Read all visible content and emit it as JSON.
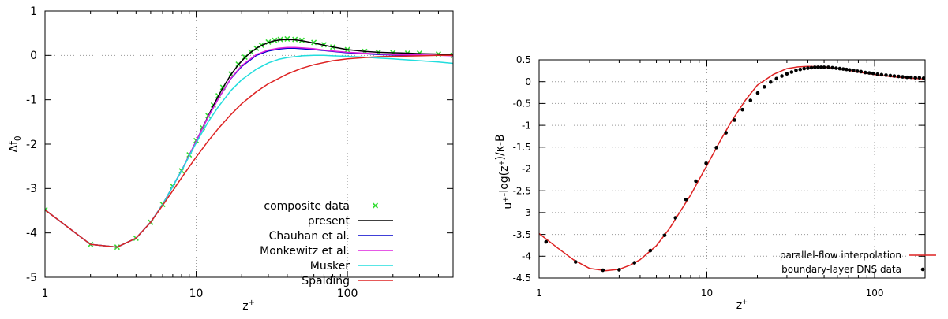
{
  "chart_data": [
    {
      "type": "line",
      "xlabel": "z+",
      "ylabel": "Δf0",
      "xscale": "log",
      "xlim": [
        1,
        500
      ],
      "ylim": [
        -5,
        1
      ],
      "xticks": [
        "1",
        "10",
        "100"
      ],
      "yticks": [
        "1",
        "0",
        "-1",
        "-2",
        "-3",
        "-4",
        "-5"
      ],
      "grid": "dotted at x=10, x=100 and y=0",
      "legend_position": "bottom-right",
      "legend": [
        "composite data",
        "present",
        "Chauhan et al.",
        "Monkewitz et al.",
        "Musker",
        "Spalding"
      ],
      "series": [
        {
          "name": "composite data",
          "style": "markers",
          "color": "#33dd33",
          "x": [
            1,
            2,
            3,
            4,
            5,
            6,
            7,
            8,
            9,
            10,
            11,
            12,
            13,
            14,
            15,
            17,
            19,
            21,
            23,
            25,
            27,
            30,
            33,
            36,
            40,
            45,
            50,
            60,
            70,
            80,
            100,
            130,
            160,
            200,
            250,
            300,
            400,
            500
          ],
          "y": [
            -3.48,
            -4.26,
            -4.32,
            -4.12,
            -3.76,
            -3.36,
            -2.95,
            -2.6,
            -2.24,
            -1.92,
            -1.63,
            -1.36,
            -1.12,
            -0.91,
            -0.72,
            -0.42,
            -0.2,
            -0.04,
            0.08,
            0.16,
            0.23,
            0.3,
            0.34,
            0.36,
            0.37,
            0.36,
            0.34,
            0.29,
            0.24,
            0.19,
            0.13,
            0.09,
            0.07,
            0.06,
            0.05,
            0.05,
            0.03,
            0.0
          ]
        },
        {
          "name": "present",
          "color": "#000000",
          "x": [
            1,
            2,
            3,
            4,
            5,
            6,
            7,
            8,
            9,
            10,
            11,
            12,
            13,
            14,
            15,
            17,
            19,
            21,
            23,
            25,
            27,
            30,
            33,
            36,
            40,
            45,
            50,
            60,
            70,
            80,
            100,
            130,
            160,
            200,
            250,
            300,
            400,
            500
          ],
          "y": [
            -3.48,
            -4.26,
            -4.32,
            -4.12,
            -3.76,
            -3.36,
            -2.95,
            -2.6,
            -2.25,
            -1.93,
            -1.64,
            -1.37,
            -1.13,
            -0.92,
            -0.73,
            -0.43,
            -0.21,
            -0.05,
            0.07,
            0.16,
            0.22,
            0.29,
            0.33,
            0.35,
            0.36,
            0.35,
            0.33,
            0.28,
            0.23,
            0.19,
            0.13,
            0.09,
            0.07,
            0.06,
            0.05,
            0.04,
            0.03,
            0.02
          ]
        },
        {
          "name": "Chauhan et al.",
          "color": "#0000cc",
          "x": [
            1,
            2,
            3,
            4,
            5,
            6,
            7,
            8,
            9,
            10,
            12,
            14,
            17,
            20,
            25,
            30,
            35,
            40,
            45,
            50,
            60,
            70,
            80,
            100,
            130,
            160,
            200,
            300,
            400,
            500
          ],
          "y": [
            -3.48,
            -4.26,
            -4.32,
            -4.12,
            -3.76,
            -3.36,
            -2.95,
            -2.6,
            -2.25,
            -1.93,
            -1.39,
            -0.98,
            -0.52,
            -0.25,
            0.0,
            0.1,
            0.14,
            0.16,
            0.16,
            0.15,
            0.13,
            0.11,
            0.09,
            0.06,
            0.04,
            0.02,
            0.01,
            0.0,
            0.0,
            0.0
          ]
        },
        {
          "name": "Monkewitz et al.",
          "color": "#dd22dd",
          "x": [
            1,
            2,
            3,
            4,
            5,
            6,
            7,
            8,
            9,
            10,
            12,
            14,
            17,
            20,
            25,
            30,
            35,
            40,
            45,
            50,
            60,
            70,
            80,
            100,
            130,
            160,
            200,
            300,
            400,
            500
          ],
          "y": [
            -3.48,
            -4.26,
            -4.32,
            -4.12,
            -3.76,
            -3.36,
            -2.95,
            -2.6,
            -2.25,
            -1.93,
            -1.39,
            -0.98,
            -0.51,
            -0.23,
            0.02,
            0.12,
            0.16,
            0.18,
            0.18,
            0.17,
            0.15,
            0.12,
            0.1,
            0.07,
            0.05,
            0.03,
            0.02,
            0.01,
            0.0,
            -0.01
          ]
        },
        {
          "name": "Musker",
          "color": "#22dddd",
          "x": [
            1,
            2,
            3,
            4,
            5,
            6,
            7,
            8,
            9,
            10,
            12,
            14,
            17,
            20,
            25,
            30,
            35,
            40,
            50,
            60,
            70,
            80,
            100,
            130,
            160,
            200,
            300,
            400,
            500
          ],
          "y": [
            -3.48,
            -4.26,
            -4.32,
            -4.12,
            -3.76,
            -3.36,
            -2.95,
            -2.6,
            -2.27,
            -1.97,
            -1.5,
            -1.16,
            -0.79,
            -0.55,
            -0.31,
            -0.17,
            -0.09,
            -0.05,
            -0.01,
            0.0,
            0.0,
            -0.01,
            -0.02,
            -0.04,
            -0.06,
            -0.08,
            -0.12,
            -0.15,
            -0.18
          ]
        },
        {
          "name": "Spalding",
          "color": "#dd2222",
          "x": [
            1,
            2,
            3,
            4,
            5,
            6,
            7,
            8,
            9,
            10,
            12,
            14,
            17,
            20,
            25,
            30,
            40,
            50,
            60,
            80,
            100,
            130,
            160,
            200,
            300,
            400,
            500
          ],
          "y": [
            -3.48,
            -4.26,
            -4.32,
            -4.12,
            -3.76,
            -3.38,
            -3.05,
            -2.76,
            -2.51,
            -2.29,
            -1.93,
            -1.65,
            -1.33,
            -1.09,
            -0.82,
            -0.64,
            -0.42,
            -0.29,
            -0.21,
            -0.12,
            -0.08,
            -0.05,
            -0.03,
            -0.02,
            -0.01,
            0.0,
            0.0
          ]
        }
      ]
    },
    {
      "type": "line",
      "xlabel": "z+",
      "ylabel": "u+-log(z+)/κ-B",
      "xscale": "log",
      "xlim": [
        1,
        200
      ],
      "ylim": [
        -4.5,
        0.5
      ],
      "xticks": [
        "1",
        "10",
        "100"
      ],
      "yticks": [
        "0.5",
        "0",
        "-0.5",
        "-1",
        "-1.5",
        "-2",
        "-2.5",
        "-3",
        "-3.5",
        "-4",
        "-4.5"
      ],
      "grid": "dotted",
      "legend_position": "bottom-right",
      "legend": [
        "parallel-flow interpolation",
        "boundary-layer DNS data"
      ],
      "series": [
        {
          "name": "parallel-flow interpolation",
          "color": "#dd2222",
          "x": [
            1,
            1.3,
            1.6,
            2,
            2.5,
            3,
            3.5,
            4,
            5,
            6,
            7,
            8,
            9,
            10,
            12,
            14,
            17,
            20,
            25,
            30,
            35,
            40,
            50,
            60,
            70,
            80,
            100,
            130,
            160,
            200
          ],
          "y": [
            -3.48,
            -3.82,
            -4.08,
            -4.28,
            -4.33,
            -4.3,
            -4.2,
            -4.08,
            -3.76,
            -3.36,
            -2.95,
            -2.6,
            -2.24,
            -1.92,
            -1.36,
            -0.91,
            -0.42,
            -0.08,
            0.17,
            0.3,
            0.34,
            0.35,
            0.34,
            0.3,
            0.26,
            0.22,
            0.16,
            0.11,
            0.08,
            0.06
          ]
        },
        {
          "name": "boundary-layer DNS data",
          "style": "markers",
          "color": "#000000",
          "x": [
            1.1,
            1.65,
            2.4,
            3.0,
            3.7,
            4.6,
            5.6,
            6.5,
            7.5,
            8.6,
            9.9,
            11.4,
            13.0,
            14.6,
            16.3,
            18.2,
            20.1,
            22.0,
            24.0,
            26.0,
            28.0,
            30.0,
            32.0,
            34.0,
            36.0,
            38.0,
            40.0,
            42.0,
            44.0,
            46.0,
            48.0,
            50.0,
            53.0,
            56.0,
            59.0,
            62.0,
            65.0,
            68.0,
            71.0,
            75.0,
            79.0,
            83.0,
            88.0,
            93.0,
            98.0,
            104.0,
            110.0,
            117.0,
            124.0,
            131.0,
            139.0,
            147.0,
            156.0,
            165.0,
            175.0,
            185.0,
            196.0
          ],
          "y": [
            -3.67,
            -4.13,
            -4.32,
            -4.31,
            -4.15,
            -3.87,
            -3.52,
            -3.12,
            -2.7,
            -2.28,
            -1.87,
            -1.51,
            -1.17,
            -0.88,
            -0.64,
            -0.43,
            -0.26,
            -0.12,
            -0.01,
            0.07,
            0.13,
            0.18,
            0.22,
            0.26,
            0.28,
            0.3,
            0.31,
            0.32,
            0.33,
            0.33,
            0.33,
            0.33,
            0.33,
            0.32,
            0.31,
            0.3,
            0.29,
            0.28,
            0.27,
            0.26,
            0.24,
            0.23,
            0.21,
            0.2,
            0.19,
            0.17,
            0.16,
            0.15,
            0.14,
            0.13,
            0.12,
            0.11,
            0.1,
            0.1,
            0.09,
            0.09,
            0.08
          ]
        }
      ]
    }
  ]
}
